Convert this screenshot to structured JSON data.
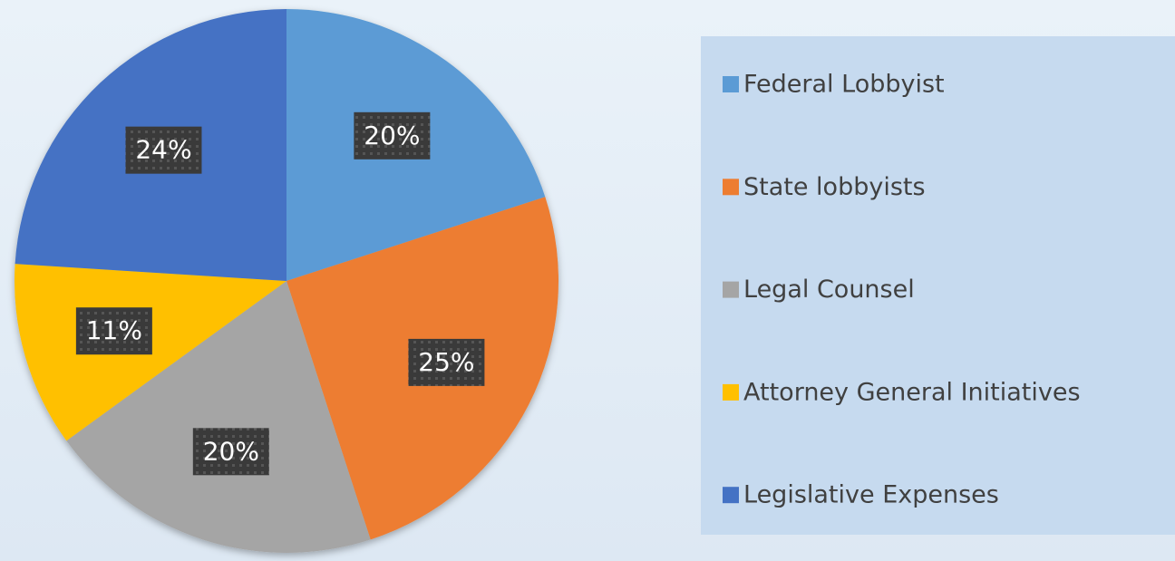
{
  "chart_data": {
    "type": "pie",
    "categories": [
      "Federal Lobbyist",
      "State lobbyists",
      "Legal Counsel",
      "Attorney General Initiatives",
      "Legislative Expenses"
    ],
    "values": [
      20,
      25,
      20,
      11,
      24
    ],
    "value_labels": [
      "20%",
      "25%",
      "20%",
      "11%",
      "24%"
    ],
    "colors": [
      "#5b9bd5",
      "#ed7d31",
      "#a5a5a5",
      "#ffc000",
      "#4472c4"
    ],
    "legend": "right"
  }
}
